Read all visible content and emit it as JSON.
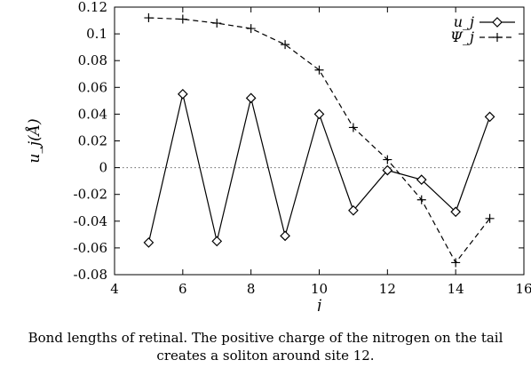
{
  "chart_data": {
    "type": "line",
    "xlabel": "j",
    "ylabel": "u_j(Å)",
    "xlim": [
      4,
      16
    ],
    "ylim": [
      -0.08,
      0.12
    ],
    "x_ticks": [
      4,
      6,
      8,
      10,
      12,
      14,
      16
    ],
    "y_ticks": [
      -0.08,
      -0.06,
      -0.04,
      -0.02,
      0,
      0.02,
      0.04,
      0.06,
      0.08,
      0.1,
      0.12
    ],
    "y_tick_labels": [
      "-0.08",
      "-0.06",
      "-0.04",
      "-0.02",
      "0",
      "0.02",
      "0.04",
      "0.06",
      "0.08",
      "0.1",
      "0.12"
    ],
    "grid": false,
    "zero_line": true,
    "legend_position": "top-right",
    "series": [
      {
        "name": "u_j",
        "marker": "diamond",
        "line": "solid",
        "x": [
          5,
          6,
          7,
          8,
          9,
          10,
          11,
          12,
          13,
          14,
          15
        ],
        "y": [
          -0.056,
          0.055,
          -0.055,
          0.052,
          -0.051,
          0.04,
          -0.032,
          -0.002,
          -0.009,
          -0.033,
          0.038
        ]
      },
      {
        "name": "Ψ_j",
        "marker": "plus",
        "line": "dashed",
        "x": [
          5,
          6,
          7,
          8,
          9,
          10,
          11,
          12,
          13,
          14,
          15
        ],
        "y": [
          0.112,
          0.111,
          0.108,
          0.104,
          0.092,
          0.073,
          0.03,
          0.006,
          -0.024,
          -0.071,
          -0.038
        ]
      }
    ]
  },
  "caption": {
    "line1": "Bond lengths of retinal. The positive charge of the nitrogen on the tail",
    "line2": "creates a soliton around site 12."
  }
}
